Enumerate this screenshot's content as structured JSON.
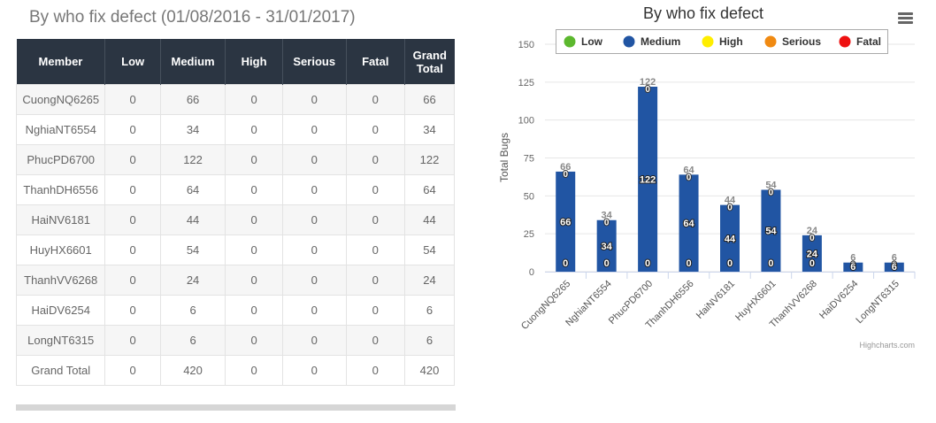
{
  "table_title": "By who fix defect (01/08/2016 - 31/01/2017)",
  "table": {
    "headers": [
      "Member",
      "Low",
      "Medium",
      "High",
      "Serious",
      "Fatal",
      "Grand Total"
    ],
    "rows": [
      [
        "CuongNQ6265",
        "0",
        "66",
        "0",
        "0",
        "0",
        "66"
      ],
      [
        "NghiaNT6554",
        "0",
        "34",
        "0",
        "0",
        "0",
        "34"
      ],
      [
        "PhucPD6700",
        "0",
        "122",
        "0",
        "0",
        "0",
        "122"
      ],
      [
        "ThanhDH6556",
        "0",
        "64",
        "0",
        "0",
        "0",
        "64"
      ],
      [
        "HaiNV6181",
        "0",
        "44",
        "0",
        "0",
        "0",
        "44"
      ],
      [
        "HuyHX6601",
        "0",
        "54",
        "0",
        "0",
        "0",
        "54"
      ],
      [
        "ThanhVV6268",
        "0",
        "24",
        "0",
        "0",
        "0",
        "24"
      ],
      [
        "HaiDV6254",
        "0",
        "6",
        "0",
        "0",
        "0",
        "6"
      ],
      [
        "LongNT6315",
        "0",
        "6",
        "0",
        "0",
        "0",
        "6"
      ],
      [
        "Grand Total",
        "0",
        "420",
        "0",
        "0",
        "0",
        "420"
      ]
    ]
  },
  "credit": "Highcharts.com",
  "chart_data": {
    "type": "bar",
    "stacked": true,
    "title": "By who fix defect",
    "ylabel": "Total Bugs",
    "xlabel": "",
    "ylim": [
      0,
      150
    ],
    "yticks": [
      0,
      25,
      50,
      75,
      100,
      125,
      150
    ],
    "grid": true,
    "legend_position": "top-right",
    "categories": [
      "CuongNQ6265",
      "NghiaNT6554",
      "PhucPD6700",
      "ThanhDH6556",
      "HaiNV6181",
      "HuyHX6601",
      "ThanhVV6268",
      "HaiDV6254",
      "LongNT6315"
    ],
    "series": [
      {
        "name": "Low",
        "color": "#5cb82e",
        "values": [
          0,
          0,
          0,
          0,
          0,
          0,
          0,
          0,
          0
        ]
      },
      {
        "name": "Medium",
        "color": "#2155a3",
        "values": [
          66,
          34,
          122,
          64,
          44,
          54,
          24,
          6,
          6
        ]
      },
      {
        "name": "High",
        "color": "#ffee00",
        "values": [
          0,
          0,
          0,
          0,
          0,
          0,
          0,
          0,
          0
        ]
      },
      {
        "name": "Serious",
        "color": "#f08a12",
        "values": [
          0,
          0,
          0,
          0,
          0,
          0,
          0,
          0,
          0
        ]
      },
      {
        "name": "Fatal",
        "color": "#ee1111",
        "values": [
          0,
          0,
          0,
          0,
          0,
          0,
          0,
          0,
          0
        ]
      }
    ],
    "totals": [
      66,
      34,
      122,
      64,
      44,
      54,
      24,
      6,
      6
    ]
  }
}
